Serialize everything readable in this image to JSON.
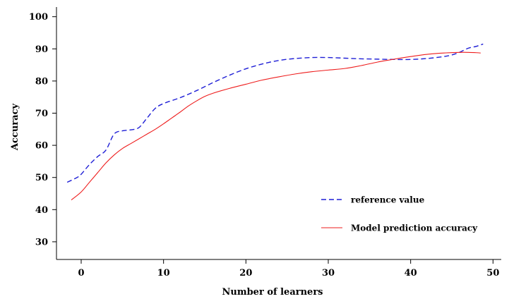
{
  "chart_data": {
    "type": "line",
    "title": "",
    "xlabel": "Number of learners",
    "ylabel": "Accuracy",
    "xlim": [
      -3,
      51
    ],
    "ylim": [
      24.5,
      103
    ],
    "xticks": [
      0,
      10,
      20,
      30,
      40,
      50
    ],
    "yticks": [
      30,
      40,
      50,
      60,
      70,
      80,
      90,
      100
    ],
    "grid": false,
    "legend_position": "lower-right",
    "series": [
      {
        "name": "reference value",
        "style": "dashed",
        "color": "#1f1fd6",
        "x": [
          -1.7,
          -0.5,
          0,
          1,
          2,
          3,
          4,
          5,
          6,
          7,
          8,
          9,
          10,
          12,
          14,
          16,
          18,
          20,
          22,
          24,
          26,
          28,
          30,
          32,
          34,
          36,
          38,
          40,
          42,
          44,
          45,
          46,
          47,
          48,
          48.8
        ],
        "y": [
          48.5,
          50,
          51,
          54,
          56.5,
          58.5,
          63.5,
          64.5,
          64.8,
          65.5,
          68.5,
          71.5,
          73,
          74.8,
          77,
          79.5,
          81.8,
          83.8,
          85.3,
          86.4,
          87,
          87.3,
          87.3,
          87.1,
          86.9,
          86.8,
          86.7,
          86.7,
          87,
          87.6,
          88.1,
          89,
          90.2,
          90.8,
          91.5
        ]
      },
      {
        "name": "Model prediction accuracy",
        "style": "solid",
        "color": "#ee1c1c",
        "x": [
          -1.2,
          0,
          1,
          2,
          3,
          4,
          5,
          6,
          7,
          8,
          9,
          10,
          11,
          12,
          13,
          14,
          15,
          16,
          18,
          20,
          22,
          24,
          26,
          28,
          30,
          32,
          34,
          36,
          38,
          40,
          42,
          44,
          46,
          47,
          48,
          48.5
        ],
        "y": [
          43,
          45.5,
          48.5,
          51.5,
          54.5,
          57,
          59,
          60.5,
          62,
          63.5,
          65,
          66.7,
          68.5,
          70.3,
          72.2,
          73.8,
          75.2,
          76.2,
          77.7,
          79,
          80.3,
          81.3,
          82.2,
          82.9,
          83.4,
          83.9,
          84.8,
          85.9,
          86.8,
          87.6,
          88.3,
          88.7,
          88.9,
          88.9,
          88.8,
          88.7
        ]
      }
    ]
  }
}
